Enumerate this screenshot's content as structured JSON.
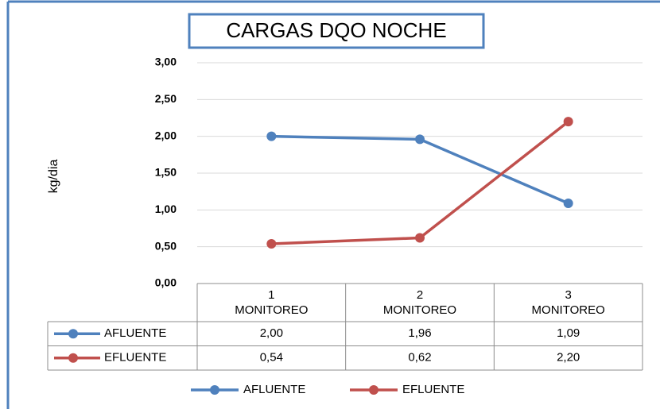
{
  "chart_data": {
    "type": "line",
    "title": "CARGAS DQO NOCHE",
    "ylabel": "kg/dia",
    "categories": [
      "1\nMONITOREO",
      "2\nMONITOREO",
      "3\nMONITOREO"
    ],
    "series": [
      {
        "name": "AFLUENTE",
        "color": "#4f81bd",
        "values": [
          2.0,
          1.96,
          1.09
        ],
        "value_labels": [
          "2,00",
          "1,96",
          "1,09"
        ]
      },
      {
        "name": "EFLUENTE",
        "color": "#c0504d",
        "values": [
          0.54,
          0.62,
          2.2
        ],
        "value_labels": [
          "0,54",
          "0,62",
          "2,20"
        ]
      }
    ],
    "ylim": [
      0,
      3
    ],
    "yticks": [
      {
        "value": 0,
        "label": "0,00"
      },
      {
        "value": 0.5,
        "label": "0,50"
      },
      {
        "value": 1,
        "label": "1,00"
      },
      {
        "value": 1.5,
        "label": "1,50"
      },
      {
        "value": 2,
        "label": "2,00"
      },
      {
        "value": 2.5,
        "label": "2,50"
      },
      {
        "value": 3,
        "label": "3,00"
      }
    ],
    "grid": true,
    "legend": "bottom"
  }
}
